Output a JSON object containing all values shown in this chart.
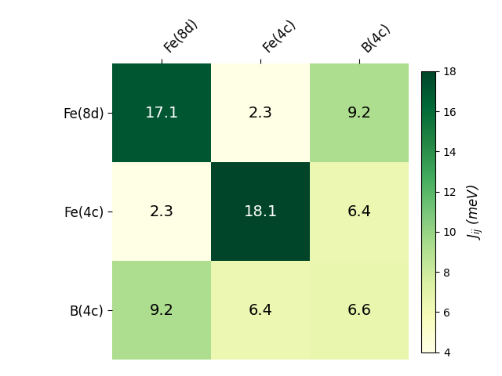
{
  "labels": [
    "Fe(8d)",
    "Fe(4c)",
    "B(4c)"
  ],
  "matrix": [
    [
      17.1,
      2.3,
      9.2
    ],
    [
      2.3,
      18.1,
      6.4
    ],
    [
      9.2,
      6.4,
      6.6
    ]
  ],
  "colorbar_vmin": 4,
  "colorbar_vmax": 18,
  "colorbar_ticks": [
    4,
    6,
    8,
    10,
    12,
    14,
    16,
    18
  ],
  "colormap": "YlGn",
  "colorbar_label": "$J_{ij}$ (meV)",
  "text_color_threshold": 12.0,
  "fontsize_annotations": 14,
  "fontsize_labels": 12,
  "fontsize_colorbar_label": 12,
  "fontsize_colorbar_ticks": 10,
  "white_text_values": [
    17.1,
    18.1
  ],
  "background_color": "#ffffff"
}
